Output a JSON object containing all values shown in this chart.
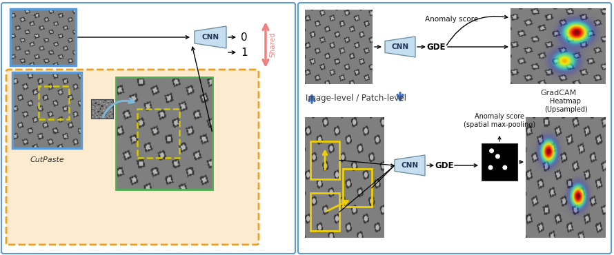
{
  "bg_color": "#ffffff",
  "left_panel_border": "#5b9bd5",
  "right_panel_border": "#5b9bd5",
  "orange_box_color": "#fdebd0",
  "orange_box_border": "#e8a020",
  "green_box_border": "#4caf50",
  "blue_box_border": "#5b9bd5",
  "text_cutpaste": "CutPaste",
  "text_shared": "Shared",
  "text_0": "0",
  "text_1": "1",
  "text_cnn": "CNN",
  "text_gde": "GDE",
  "text_gradcam": "GradCAM",
  "text_anomaly_score_top": "Anomaly score",
  "text_image_patch": "Image-level / Patch-level",
  "text_anomaly_score_bottom": "Anomaly score\n(spatial max-pooling)",
  "text_heatmap": "Heatmap\n(Upsampled)",
  "arrow_color_shared": "#f08080",
  "arrow_color_blue": "#4472c4",
  "cnn_fill": "#c5dff0",
  "cnn_border": "#7090a0"
}
